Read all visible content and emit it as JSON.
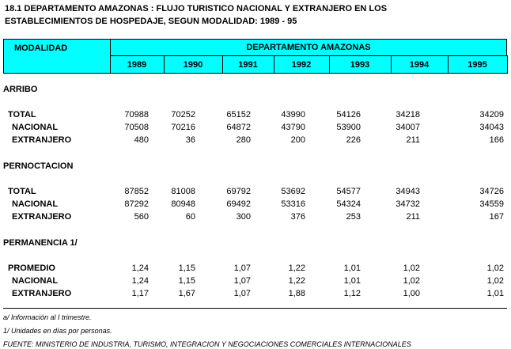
{
  "title": [
    "18.1  DEPARTAMENTO AMAZONAS : FLUJO TURISTICO NACIONAL Y EXTRANJERO EN LOS",
    "ESTABLECIMIENTOS DE HOSPEDAJE, SEGUN MODALIDAD: 1989 - 95"
  ],
  "table": {
    "row_header": "MODALIDAD",
    "group_header": "DEPARTAMENTO  AMAZONAS",
    "years": [
      "1989",
      "1990",
      "1991",
      "1992",
      "1993",
      "1994",
      "1995"
    ],
    "sections": [
      {
        "label": "ARRIBO",
        "rows": [
          {
            "label": "TOTAL",
            "values": [
              "70988",
              "70252",
              "65152",
              "43990",
              "54126",
              "34218",
              "34209"
            ]
          },
          {
            "label": "NACIONAL",
            "values": [
              "70508",
              "70216",
              "64872",
              "43790",
              "53900",
              "34007",
              "34043"
            ]
          },
          {
            "label": "EXTRANJERO",
            "values": [
              "480",
              "36",
              "280",
              "200",
              "226",
              "211",
              "166"
            ]
          }
        ]
      },
      {
        "label": "PERNOCTACION",
        "rows": [
          {
            "label": "TOTAL",
            "values": [
              "87852",
              "81008",
              "69792",
              "53692",
              "54577",
              "34943",
              "34726"
            ]
          },
          {
            "label": "NACIONAL",
            "values": [
              "87292",
              "80948",
              "69492",
              "53316",
              "54324",
              "34732",
              "34559"
            ]
          },
          {
            "label": "EXTRANJERO",
            "values": [
              "560",
              "60",
              "300",
              "376",
              "253",
              "211",
              "167"
            ]
          }
        ]
      },
      {
        "label": "PERMANENCIA  1/",
        "rows": [
          {
            "label": "PROMEDIO",
            "values": [
              "1,24",
              "1,15",
              "1,07",
              "1,22",
              "1,01",
              "1,02",
              "1,02"
            ]
          },
          {
            "label": "NACIONAL",
            "values": [
              "1,24",
              "1,15",
              "1,07",
              "1,22",
              "1,01",
              "1,02",
              "1,02"
            ]
          },
          {
            "label": "EXTRANJERO",
            "values": [
              "1,17",
              "1,67",
              "1,07",
              "1,88",
              "1,12",
              "1,00",
              "1,01"
            ]
          }
        ]
      }
    ]
  },
  "notes": [
    "a/ Información al I trimestre.",
    "1/ Unidades en días por personas.",
    "FUENTE: MINISTERIO DE INDUSTRIA, TURISMO, INTEGRACION Y NEGOCIACIONES COMERCIALES INTERNACIONALES"
  ]
}
